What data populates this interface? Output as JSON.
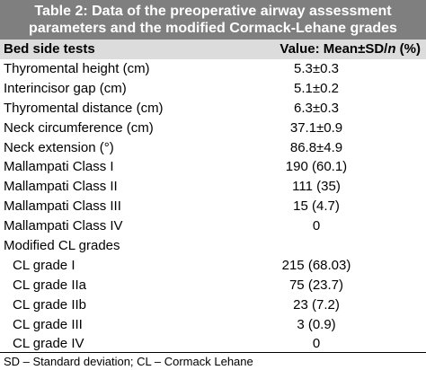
{
  "title": {
    "line1": "Table 2: Data of the preoperative airway assessment",
    "line2": "parameters and the modified Cormack-Lehane grades"
  },
  "header": {
    "col1": "Bed side tests",
    "col2_prefix": "Value: Mean±SD/",
    "col2_italic": "n",
    "col2_suffix": " (%)"
  },
  "rows": [
    {
      "label": "Thyromental height (cm)",
      "value": "5.3±0.3"
    },
    {
      "label": "Interincisor gap (cm)",
      "value": "5.1±0.2"
    },
    {
      "label": "Thyromental distance (cm)",
      "value": "6.3±0.3"
    },
    {
      "label": "Neck circumference (cm)",
      "value": "37.1±0.9"
    },
    {
      "label": "Neck extension (°)",
      "value": "86.8±4.9"
    },
    {
      "label": "Mallampati Class I",
      "value": "190 (60.1)"
    },
    {
      "label": "Mallampati Class II",
      "value": "111 (35)"
    },
    {
      "label": "Mallampati Class III",
      "value": "15 (4.7)"
    },
    {
      "label": "Mallampati Class IV",
      "value": "0"
    },
    {
      "label": "Modified CL grades",
      "value": ""
    },
    {
      "label": "CL grade I",
      "value": "215 (68.03)"
    },
    {
      "label": "CL grade IIa",
      "value": "75 (23.7)"
    },
    {
      "label": "CL grade IIb",
      "value": "23 (7.2)"
    },
    {
      "label": "CL grade III",
      "value": "3 (0.9)"
    },
    {
      "label": "CL grade IV",
      "value": "0"
    }
  ],
  "footnote": "SD – Standard deviation; CL – Cormack Lehane",
  "colors": {
    "title_bg": "#7f7f7f",
    "header_bg": "#dcdcdc"
  }
}
